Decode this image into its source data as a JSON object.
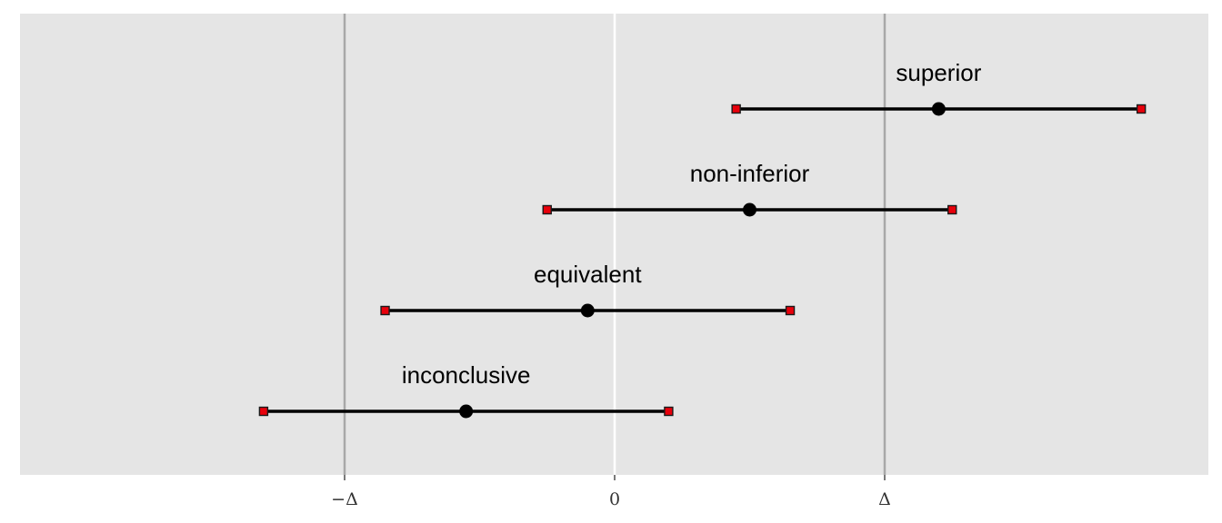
{
  "chart_data": {
    "type": "interval",
    "title": "",
    "xlabel": "",
    "ylabel": "",
    "xlim": [
      -1.2,
      2.2
    ],
    "grid": false,
    "ticks": [
      {
        "value": -1,
        "label": "−Δ"
      },
      {
        "value": 0,
        "label": "0"
      },
      {
        "value": 1,
        "label": "Δ"
      }
    ],
    "reference_lines": [
      {
        "value": -1,
        "kind": "margin"
      },
      {
        "value": 0,
        "kind": "zero"
      },
      {
        "value": 1,
        "kind": "margin"
      }
    ],
    "intervals": [
      {
        "label": "superior",
        "estimate": 1.2,
        "lower": 0.45,
        "upper": 1.95
      },
      {
        "label": "non-inferior",
        "estimate": 0.5,
        "lower": -0.25,
        "upper": 1.25
      },
      {
        "label": "equivalent",
        "estimate": -0.1,
        "lower": -0.85,
        "upper": 0.65
      },
      {
        "label": "inconclusive",
        "estimate": -0.55,
        "lower": -1.3,
        "upper": 0.2
      }
    ]
  },
  "colors": {
    "panel_background": "#e5e5e5",
    "margin_line": "#a8a8a8",
    "zero_line": "#ffffff",
    "interval_line": "#000000",
    "endpoint_fill": "#e8000b",
    "estimate_point": "#000000"
  }
}
